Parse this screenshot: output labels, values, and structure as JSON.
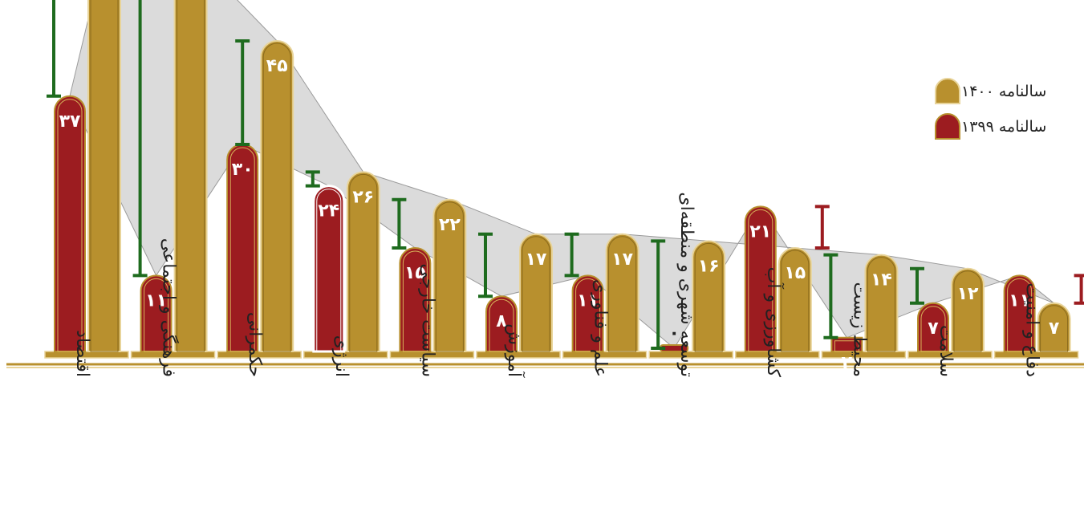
{
  "legend": {
    "series_2021_label": "سالنامه ۱۴۰۰",
    "series_2020_label": "سالنامه ۱۳۹۹"
  },
  "colors": {
    "series_2021": "#b8902e",
    "series_2020": "#9c1c20",
    "increase_bar": "#1e6b1e",
    "decrease_bar": "#9c1c20",
    "band": "#bdbdbd"
  },
  "chart_data": {
    "type": "bar",
    "categories": [
      "اقتصاد",
      "فرهنگی و اجتماعی",
      "حکمرانی",
      "انرژی",
      "سیاست خارجی",
      "آموزش",
      "علم و فناوری",
      "توسعه شهری و منطقه‌ای",
      "کشاورزی و آب",
      "محیط زیست",
      "سلامت",
      "دفاع و امنیت"
    ],
    "series": [
      {
        "name": "سالنامه ۱۳۹۹",
        "values": [
          37,
          11,
          30,
          24,
          15,
          8,
          11,
          0,
          21,
          2,
          7,
          11
        ],
        "labels": [
          "۳۷",
          "۱۱",
          "۳۰",
          "۲۴",
          "۱۵",
          "۸",
          "۱۱",
          "۰",
          "۲۱",
          "۲",
          "۷",
          "۱۱"
        ]
      },
      {
        "name": "سالنامه ۱۴۰۰",
        "values": [
          null,
          null,
          45,
          26,
          22,
          17,
          17,
          16,
          15,
          14,
          12,
          7
        ],
        "labels": [
          "",
          "",
          "۴۵",
          "۲۶",
          "۲۲",
          "۱۷",
          "۱۷",
          "۱۶",
          "۱۵",
          "۱۴",
          "۱۲",
          "۷"
        ]
      }
    ]
  }
}
